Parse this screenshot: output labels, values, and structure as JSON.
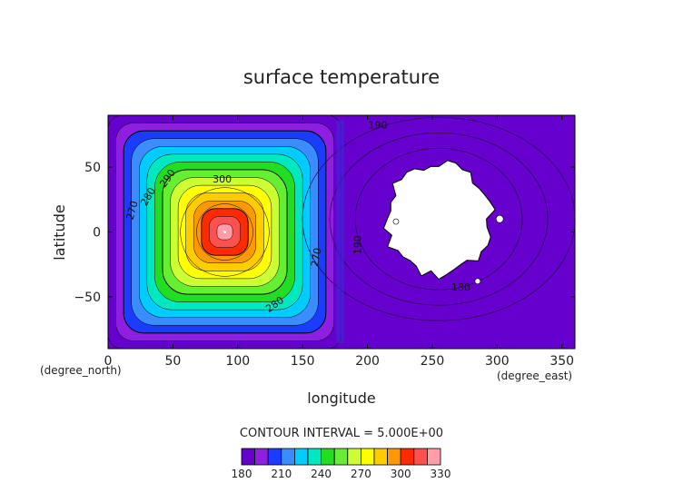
{
  "chart_data": {
    "type": "heatmap",
    "title": "surface temperature",
    "xlabel": "longitude",
    "ylabel": "latitude",
    "x_unit": "(degree_east)",
    "y_unit": "(degree_north)",
    "xlim": [
      0,
      360
    ],
    "ylim": [
      -90,
      90
    ],
    "x_ticks": [
      0,
      50,
      100,
      150,
      200,
      250,
      300,
      350
    ],
    "y_ticks": [
      50,
      0,
      -50
    ],
    "contour_interval_label": "CONTOUR INTERVAL = 5.000E+00",
    "colorbar": {
      "levels": [
        180,
        190,
        200,
        210,
        220,
        230,
        240,
        250,
        260,
        270,
        280,
        290,
        300,
        310,
        320,
        330
      ],
      "tick_labels": [
        "180",
        "210",
        "240",
        "270",
        "300",
        "330"
      ],
      "colors": [
        "#6600cc",
        "#8e1ee0",
        "#1a3cff",
        "#3a8cff",
        "#00ccff",
        "#00e8c0",
        "#22dd22",
        "#66ee33",
        "#ccff33",
        "#ffff00",
        "#ffcc00",
        "#ff9900",
        "#ff2a00",
        "#ff5050",
        "#ff9ea6"
      ]
    },
    "contour_labels": [
      "300",
      "290",
      "280",
      "270",
      "280",
      "270",
      "190",
      "180",
      "190"
    ],
    "fields": [
      {
        "region": "west",
        "lon_range": [
          0,
          180
        ],
        "center_lon": 90,
        "center_lat": 0,
        "center_value": 330,
        "edge_value": 180
      },
      {
        "region": "east",
        "lon_range": [
          180,
          360
        ],
        "background_value": 185,
        "blank_patch_center": [
          255,
          10
        ]
      }
    ]
  }
}
